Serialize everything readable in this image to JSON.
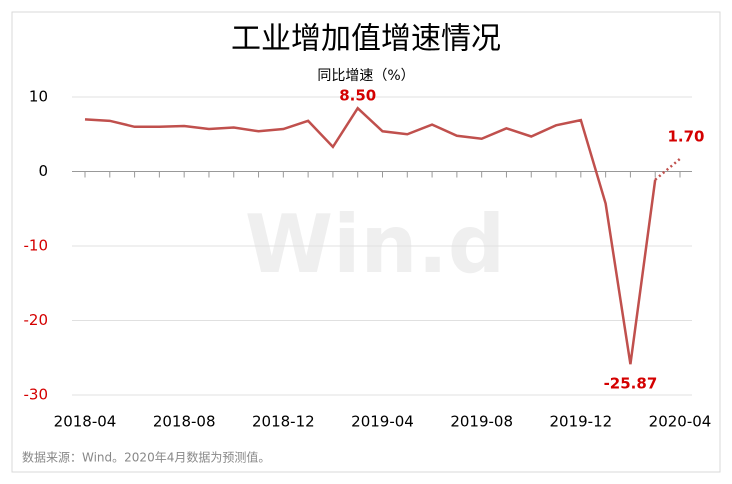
{
  "chart_data": {
    "type": "line",
    "title": "工业增加值增速情况",
    "subtitle": "同比增速（%）",
    "watermark": "Win.d",
    "footnote": "数据来源：Wind。2020年4月数据为预测值。",
    "categories": [
      "2018-04",
      null,
      null,
      null,
      "2018-08",
      null,
      null,
      null,
      "2018-12",
      null,
      null,
      null,
      "2019-04",
      null,
      null,
      null,
      "2019-08",
      null,
      null,
      null,
      "2019-12",
      null,
      null,
      null,
      "2020-04"
    ],
    "values": [
      7.0,
      6.8,
      6.0,
      6.0,
      6.1,
      5.7,
      5.9,
      5.4,
      5.7,
      6.8,
      3.3,
      8.5,
      5.4,
      5.0,
      6.3,
      4.8,
      4.4,
      5.8,
      4.7,
      6.2,
      6.9,
      -4.3,
      -25.87,
      -1.1,
      1.7
    ],
    "value_labels": [
      null,
      null,
      null,
      null,
      null,
      null,
      null,
      null,
      null,
      null,
      null,
      "8.50",
      null,
      null,
      null,
      null,
      null,
      null,
      null,
      null,
      null,
      null,
      "-25.87",
      null,
      "1.70"
    ],
    "color": "#c0504d",
    "label_color": "#d40000",
    "projected_last": true,
    "ylim": [
      -30,
      10
    ],
    "yticks": [
      10,
      0,
      -10,
      -20,
      -30
    ],
    "grid": true
  }
}
